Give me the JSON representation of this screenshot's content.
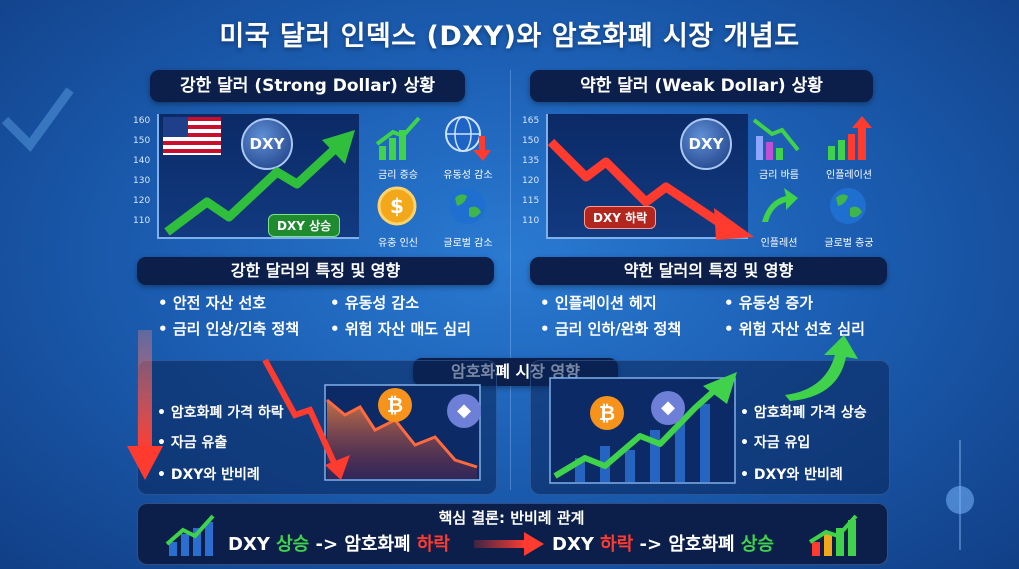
{
  "title": "미국 달러 인덱스 (DXY)와 암호화폐 시장 개념도",
  "strong": {
    "header": "강한 달러 (Strong Dollar) 상황",
    "yticks": [
      "160",
      "150",
      "140",
      "130",
      "120",
      "110"
    ],
    "dxy_badge": "DXY",
    "trend_tag": "DXY 상승",
    "icons": [
      {
        "name": "bar-up-icon",
        "label": "금리 증승"
      },
      {
        "name": "globe-down-icon",
        "label": "유동성 감소"
      },
      {
        "name": "dollar-coin-icon",
        "label": "유충 인신"
      },
      {
        "name": "globe-icon",
        "label": "글로벌 감소"
      }
    ],
    "features_header": "강한 달러의 특징 및 영향",
    "features": [
      "안전 자산 선호",
      "유동성 감소",
      "금리 인상/긴축 정책",
      "위험 자산 매도 심리"
    ],
    "crypto_bullets": [
      "암호화폐 가격 하락",
      "자금 유출",
      "DXY와 반비례"
    ]
  },
  "weak": {
    "header": "약한 달러 (Weak Dollar) 상황",
    "yticks": [
      "165",
      "150",
      "135",
      "120",
      "115",
      "110"
    ],
    "dxy_badge": "DXY",
    "trend_tag": "DXY 하락",
    "icons": [
      {
        "name": "bar-down-icon",
        "label": "금리 바름"
      },
      {
        "name": "inflation-bar-icon",
        "label": "인플레이션"
      },
      {
        "name": "arrow-up-icon",
        "label": "인플레션"
      },
      {
        "name": "globe-icon",
        "label": "글로벌 층궁"
      }
    ],
    "features_header": "약한 달러의 특징 및 영향",
    "features": [
      "인플레이션 헤지",
      "유동성 증가",
      "금리 인하/완화 정책",
      "위험 자산 선호 심리"
    ],
    "crypto_bullets": [
      "암호화폐 가격 상승",
      "자금 유입",
      "DXY와 반비례"
    ]
  },
  "crypto_header": "암호화폐 시장 영향",
  "coins": {
    "btc": "₿",
    "eth": "◆"
  },
  "conclusion": {
    "title": "핵심 결론: 반비례 관계",
    "left": {
      "a": "DXY ",
      "b": "상승",
      "c": " -> 암호화폐 ",
      "d": "하락"
    },
    "right": {
      "a": "DXY ",
      "b": "하락",
      "c": " -> 암호화폐 ",
      "d": "상승"
    }
  },
  "colors": {
    "up": "#3fd24a",
    "down": "#ff3b30",
    "bg": "#1c5fb4",
    "pill": "#0c1f4a"
  }
}
